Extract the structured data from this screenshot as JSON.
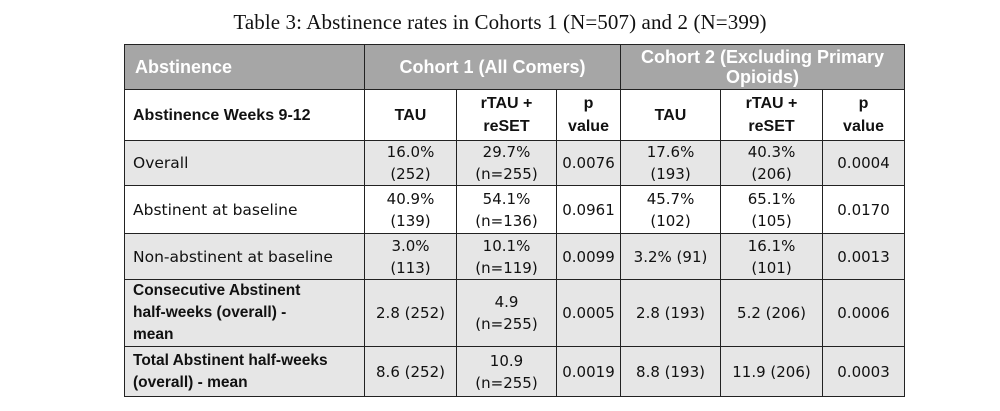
{
  "caption": "Table 3: Abstinence rates in Cohorts 1 (N=507) and 2 (N=399)",
  "header": {
    "col0": "Abstinence",
    "cohort1": "Cohort 1 (All Comers)",
    "cohort2": "Cohort 2 (Excluding Primary Opioids)"
  },
  "subheader": {
    "label": "Abstinence Weeks 9-12",
    "c1_tau": "TAU",
    "c1_rtau_line1": "rTAU +",
    "c1_rtau_line2": "reSET",
    "c1_p_line1": "p",
    "c1_p_line2": "value",
    "c2_tau": "TAU",
    "c2_rtau_line1": "rTAU +",
    "c2_rtau_line2": "reSET",
    "c2_p_line1": "p",
    "c2_p_line2": "value"
  },
  "rows": [
    {
      "label": "Overall",
      "c1_tau": [
        "16.0%",
        "(252)"
      ],
      "c1_rtau": [
        "29.7%",
        "(n=255)"
      ],
      "c1_p": "0.0076",
      "c2_tau": [
        "17.6%",
        "(193)"
      ],
      "c2_rtau": [
        "40.3%",
        "(206)"
      ],
      "c2_p": "0.0004"
    },
    {
      "label": "Abstinent at baseline",
      "c1_tau": [
        "40.9%",
        "(139)"
      ],
      "c1_rtau": [
        "54.1%",
        "(n=136)"
      ],
      "c1_p": "0.0961",
      "c2_tau": [
        "45.7%",
        "(102)"
      ],
      "c2_rtau": [
        "65.1%",
        "(105)"
      ],
      "c2_p": "0.0170"
    },
    {
      "label": "Non-abstinent at baseline",
      "c1_tau": [
        "3.0%",
        "(113)"
      ],
      "c1_rtau": [
        "10.1%",
        "(n=119)"
      ],
      "c1_p": "0.0099",
      "c2_tau": [
        "3.2% (91)"
      ],
      "c2_rtau": [
        "16.1%",
        "(101)"
      ],
      "c2_p": "0.0013"
    },
    {
      "label": [
        "Consecutive Abstinent",
        "half-weeks  (overall) -",
        "mean"
      ],
      "c1_tau": [
        "2.8 (252)"
      ],
      "c1_rtau": [
        "4.9",
        "(n=255)"
      ],
      "c1_p": "0.0005",
      "c2_tau": [
        "2.8 (193)"
      ],
      "c2_rtau": [
        "5.2 (206)"
      ],
      "c2_p": "0.0006"
    },
    {
      "label": [
        "Total Abstinent half-weeks",
        "(overall) - mean"
      ],
      "c1_tau": [
        "8.6 (252)"
      ],
      "c1_rtau": [
        "10.9",
        "(n=255)"
      ],
      "c1_p": "0.0019",
      "c2_tau": [
        "8.8 (193)"
      ],
      "c2_rtau": [
        "11.9 (206)"
      ],
      "c2_p": "0.0003"
    }
  ]
}
